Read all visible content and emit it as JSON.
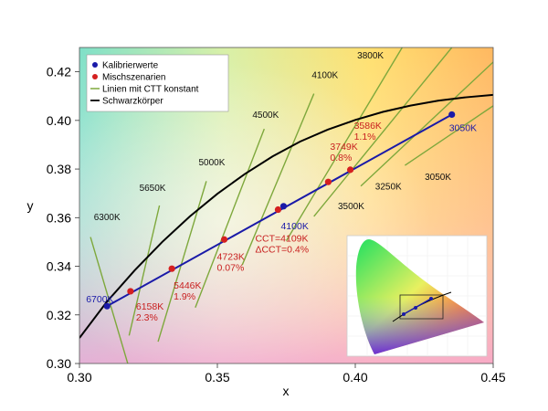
{
  "chart_data": {
    "type": "scatter",
    "xlabel": "x",
    "ylabel": "y",
    "xlim": [
      0.3,
      0.45
    ],
    "ylim": [
      0.3,
      0.43
    ],
    "xticks": [
      "0.30",
      "0.35",
      "0.40",
      "0.45"
    ],
    "yticks": [
      "0.30",
      "0.32",
      "0.34",
      "0.36",
      "0.38",
      "0.40",
      "0.42"
    ],
    "grid": false,
    "legend_position": "top-left",
    "legend": [
      {
        "label": "Kalibrierwerte",
        "kind": "marker",
        "color": "#1a1aa8"
      },
      {
        "label": "Mischszenarien",
        "kind": "marker",
        "color": "#d42020"
      },
      {
        "label": "Linien mit CTT konstant",
        "kind": "line",
        "color": "#7ea83c"
      },
      {
        "label": "Schwarzkörper",
        "kind": "line",
        "color": "#000000"
      }
    ],
    "planckian_locus": [
      [
        0.3,
        0.3105
      ],
      [
        0.31,
        0.3255
      ],
      [
        0.32,
        0.3383
      ],
      [
        0.33,
        0.35
      ],
      [
        0.34,
        0.3605
      ],
      [
        0.35,
        0.3698
      ],
      [
        0.36,
        0.378
      ],
      [
        0.37,
        0.3852
      ],
      [
        0.38,
        0.3913
      ],
      [
        0.39,
        0.3962
      ],
      [
        0.4,
        0.4002
      ],
      [
        0.41,
        0.4035
      ],
      [
        0.42,
        0.4061
      ],
      [
        0.43,
        0.4081
      ],
      [
        0.44,
        0.4095
      ],
      [
        0.45,
        0.4105
      ]
    ],
    "calibration_line": [
      [
        0.31,
        0.3236
      ],
      [
        0.435,
        0.4024
      ]
    ],
    "calibration_points": [
      {
        "x": 0.31,
        "y": 0.3236,
        "label": "6700K"
      },
      {
        "x": 0.374,
        "y": 0.3647,
        "label": "4100K"
      },
      {
        "x": 0.435,
        "y": 0.4024,
        "label": "3050K"
      }
    ],
    "mix_points": [
      {
        "x": 0.3185,
        "y": 0.3297,
        "label": [
          "6158K",
          "2.3%"
        ]
      },
      {
        "x": 0.3335,
        "y": 0.339,
        "label": [
          "5446K",
          "1.9%"
        ]
      },
      {
        "x": 0.3525,
        "y": 0.351,
        "label": [
          "4723K",
          "0.07%"
        ]
      },
      {
        "x": 0.372,
        "y": 0.3633,
        "label": [
          "CCT=4109K",
          "ΔCCT=0.4%"
        ]
      },
      {
        "x": 0.3902,
        "y": 0.3747,
        "label": [
          "3749K",
          "0.8%"
        ]
      },
      {
        "x": 0.3982,
        "y": 0.3797,
        "label": [
          "3586K",
          "1.1%"
        ]
      }
    ],
    "iso_cct_lines": [
      {
        "label": "6300K",
        "x1": 0.3175,
        "y1": 0.3,
        "x2": 0.304,
        "y2": 0.352
      },
      {
        "label": "5650K",
        "x1": 0.318,
        "y1": 0.3115,
        "x2": 0.329,
        "y2": 0.365
      },
      {
        "label": "5000K",
        "x1": 0.3285,
        "y1": 0.309,
        "x2": 0.346,
        "y2": 0.375
      },
      {
        "label": "4500K",
        "x1": 0.342,
        "y1": 0.323,
        "x2": 0.367,
        "y2": 0.3965
      },
      {
        "label": "4100K",
        "x1": 0.359,
        "y1": 0.3405,
        "x2": 0.385,
        "y2": 0.411
      },
      {
        "label": "3800K",
        "x1": 0.375,
        "y1": 0.3505,
        "x2": 0.417,
        "y2": 0.43
      },
      {
        "label": "3500K",
        "x1": 0.385,
        "y1": 0.3605,
        "x2": 0.435,
        "y2": 0.43
      },
      {
        "label": "3250K",
        "x1": 0.402,
        "y1": 0.373,
        "x2": 0.45,
        "y2": 0.424
      },
      {
        "label": "3050K",
        "x1": 0.418,
        "y1": 0.3815,
        "x2": 0.45,
        "y2": 0.406
      }
    ],
    "iso_cct_labels": [
      {
        "text": "6300K",
        "x": 0.31,
        "y": 0.359
      },
      {
        "text": "5650K",
        "x": 0.3265,
        "y": 0.371
      },
      {
        "text": "5000K",
        "x": 0.348,
        "y": 0.3815
      },
      {
        "text": "4500K",
        "x": 0.3675,
        "y": 0.401
      },
      {
        "text": "4100K",
        "x": 0.389,
        "y": 0.4175
      },
      {
        "text": "3800K",
        "x": 0.4055,
        "y": 0.4255
      },
      {
        "text": "3500K",
        "x": 0.3985,
        "y": 0.3635
      },
      {
        "text": "3250K",
        "x": 0.412,
        "y": 0.3715
      },
      {
        "text": "3050K",
        "x": 0.43,
        "y": 0.3755
      }
    ],
    "inset_cie_diagram": true,
    "colors": {
      "calibration": "#1a1aa8",
      "mix": "#d42020",
      "mix_label": "#c82020",
      "iso_line": "#7ea83c",
      "locus": "#000000"
    }
  }
}
